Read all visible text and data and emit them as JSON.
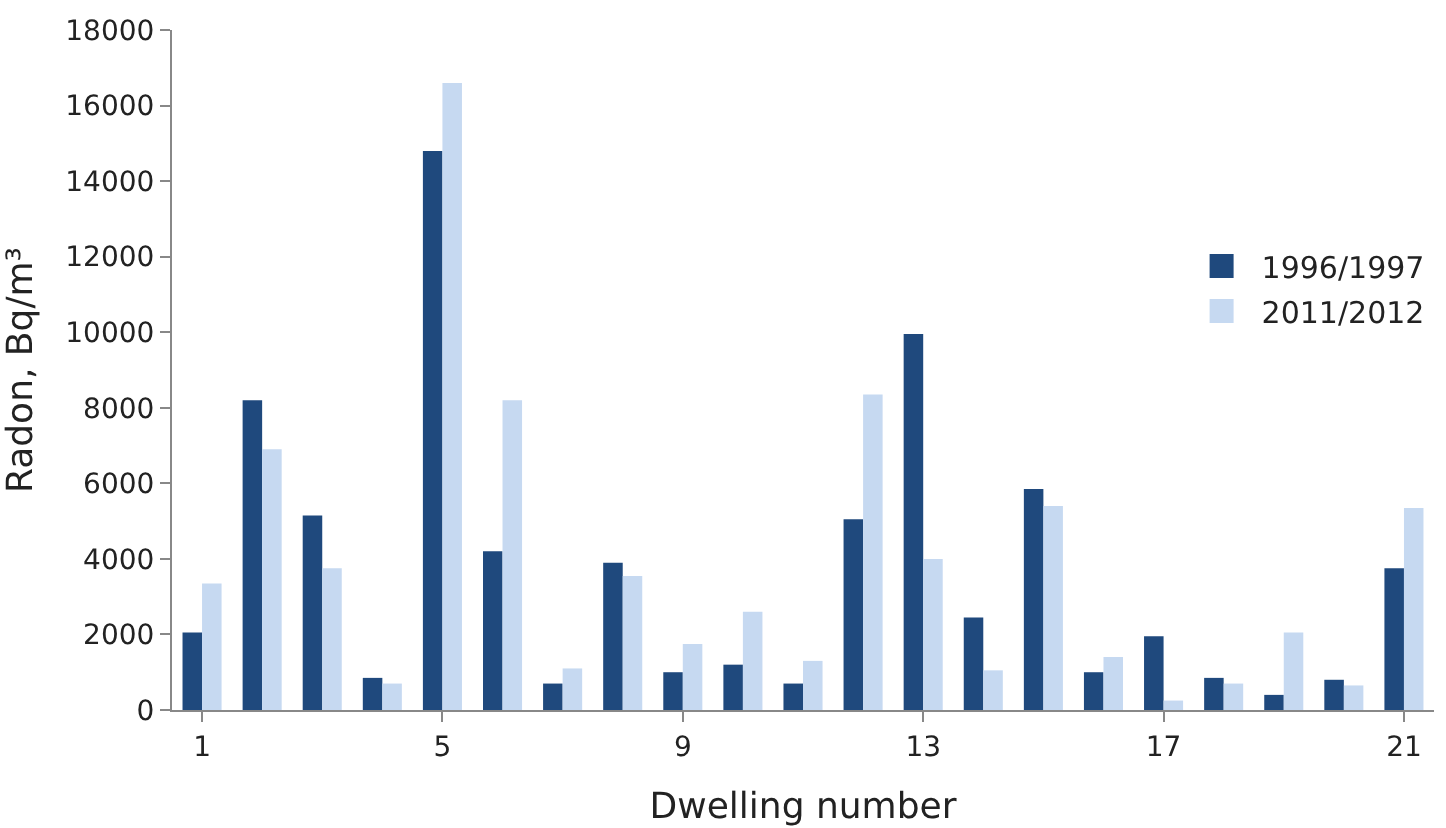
{
  "chart_data": {
    "type": "bar",
    "xlabel": "Dwelling number",
    "ylabel": "Radon, Bq/m³",
    "categories": [
      "1",
      null,
      null,
      null,
      "5",
      null,
      null,
      null,
      "9",
      null,
      null,
      null,
      "13",
      null,
      null,
      null,
      "17",
      null,
      null,
      null,
      "21"
    ],
    "series": [
      {
        "name": "1996/1997",
        "color": "#1f497d",
        "values": [
          2050,
          8200,
          5150,
          850,
          14800,
          4200,
          700,
          3900,
          1000,
          1200,
          700,
          5050,
          9950,
          2450,
          5850,
          1000,
          1950,
          850,
          400,
          800,
          3750
        ]
      },
      {
        "name": "2011/2012",
        "color": "#c6d9f1",
        "values": [
          3350,
          6900,
          3750,
          700,
          16600,
          8200,
          1100,
          3550,
          1750,
          2600,
          1300,
          8350,
          4000,
          1050,
          5400,
          1400,
          250,
          700,
          2050,
          650,
          5350
        ]
      }
    ],
    "ylim": [
      0,
      18000
    ],
    "yticks": [
      0,
      2000,
      4000,
      6000,
      8000,
      10000,
      12000,
      14000,
      16000,
      18000
    ],
    "legend": "right"
  }
}
